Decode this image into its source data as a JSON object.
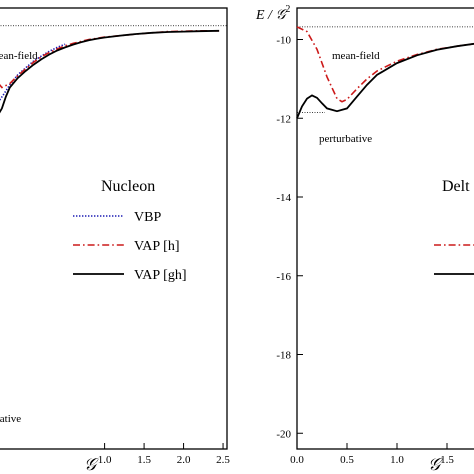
{
  "chart_data": [
    {
      "type": "line",
      "panel": "left",
      "title": "Nucleon",
      "xlabel": "𝒢",
      "ylabel": "",
      "xlim": [
        -0.35,
        2.55
      ],
      "ylim": [
        -20.4,
        -9.2
      ],
      "x_ticks": [
        1.0,
        1.5,
        2.0,
        2.5
      ],
      "x_tick_labels": [
        "1.0",
        "1.5",
        "2.0",
        "2.5"
      ],
      "annotations": {
        "mean_field": "mean-field",
        "perturbative": "perturbative"
      },
      "reference_lines": {
        "mean_field_y": -9.65
      },
      "legend": {
        "placement": "center-right",
        "entries": [
          "VBP",
          "VAP [h]",
          "VAP [gh]"
        ]
      },
      "series": [
        {
          "name": "VBP",
          "color": "#1a1ab3",
          "style": "dotted",
          "x": [
            -0.35,
            -0.28,
            -0.2,
            -0.1,
            0.0,
            0.1,
            0.2,
            0.3,
            0.4,
            0.5
          ],
          "y": [
            -11.6,
            -11.4,
            -11.15,
            -10.9,
            -10.72,
            -10.55,
            -10.42,
            -10.3,
            -10.2,
            -10.12
          ]
        },
        {
          "name": "VAP [h]",
          "color": "#cc1a1a",
          "style": "dashdot",
          "x": [
            -0.35,
            -0.3,
            -0.2,
            -0.1,
            0.0,
            0.1,
            0.2,
            0.3,
            0.4,
            0.5,
            0.6,
            0.7,
            0.8,
            0.9,
            1.0,
            1.2,
            1.4,
            1.6,
            1.8,
            2.0,
            2.2,
            2.45
          ],
          "y": [
            -11.1,
            -11.22,
            -11.12,
            -10.92,
            -10.75,
            -10.58,
            -10.44,
            -10.33,
            -10.24,
            -10.16,
            -10.1,
            -10.05,
            -10.0,
            -9.97,
            -9.94,
            -9.9,
            -9.86,
            -9.83,
            -9.8,
            -9.79,
            -9.78,
            -9.78
          ]
        },
        {
          "name": "VAP [gh]",
          "color": "#000000",
          "style": "solid",
          "x": [
            -0.35,
            -0.33,
            -0.3,
            -0.25,
            -0.2,
            -0.1,
            0.0,
            0.1,
            0.2,
            0.3,
            0.4,
            0.5,
            0.6,
            0.7,
            0.8,
            0.9,
            1.0,
            1.2,
            1.4,
            1.6,
            1.8,
            2.0,
            2.2,
            2.45
          ],
          "y": [
            -11.7,
            -11.85,
            -11.75,
            -11.45,
            -11.22,
            -10.98,
            -10.8,
            -10.64,
            -10.5,
            -10.38,
            -10.28,
            -10.2,
            -10.13,
            -10.07,
            -10.02,
            -9.98,
            -9.95,
            -9.9,
            -9.86,
            -9.83,
            -9.81,
            -9.8,
            -9.79,
            -9.78
          ]
        }
      ]
    },
    {
      "type": "line",
      "panel": "right",
      "title": "Delt",
      "ylabel_main": "E / 𝒢",
      "ylabel_sup": "2",
      "xlabel": "𝒢",
      "xlim": [
        0.0,
        1.85
      ],
      "ylim": [
        -20.4,
        -9.2
      ],
      "x_ticks": [
        0.0,
        0.5,
        1.0,
        1.5
      ],
      "x_tick_labels": [
        "0.0",
        "0.5",
        "1.0",
        "1.5"
      ],
      "y_ticks": [
        -10,
        -12,
        -14,
        -16,
        -18,
        -20
      ],
      "y_tick_labels": [
        "-10",
        "-12",
        "-14",
        "-16",
        "-18",
        "-20"
      ],
      "annotations": {
        "mean_field": "mean-field",
        "perturbative": "perturbative"
      },
      "reference_lines": {
        "mean_field_y": -9.68,
        "perturbative_y": -11.85
      },
      "series": [
        {
          "name": "VAP [h]",
          "color": "#cc1a1a",
          "style": "dashdot",
          "x": [
            0.0,
            0.1,
            0.2,
            0.3,
            0.4,
            0.45,
            0.5,
            0.6,
            0.7,
            0.8,
            1.0,
            1.2,
            1.4,
            1.6,
            1.85
          ],
          "y": [
            -9.68,
            -9.8,
            -10.25,
            -10.95,
            -11.5,
            -11.58,
            -11.52,
            -11.25,
            -11.0,
            -10.8,
            -10.55,
            -10.38,
            -10.25,
            -10.17,
            -10.08
          ]
        },
        {
          "name": "VAP [gh]",
          "color": "#000000",
          "style": "solid",
          "x": [
            0.0,
            0.05,
            0.1,
            0.15,
            0.2,
            0.25,
            0.3,
            0.4,
            0.5,
            0.6,
            0.7,
            0.8,
            1.0,
            1.2,
            1.4,
            1.6,
            1.85
          ],
          "y": [
            -12.0,
            -11.7,
            -11.5,
            -11.42,
            -11.48,
            -11.62,
            -11.75,
            -11.82,
            -11.75,
            -11.45,
            -11.15,
            -10.9,
            -10.6,
            -10.4,
            -10.26,
            -10.17,
            -10.08
          ]
        }
      ]
    }
  ]
}
